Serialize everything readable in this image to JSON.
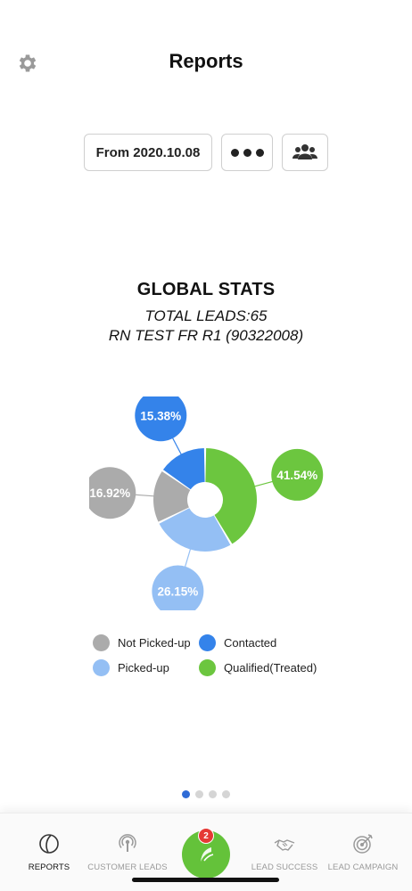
{
  "header": {
    "title": "Reports",
    "settings_icon": "gear-icon"
  },
  "controls": {
    "date_filter_label": "From 2020.10.08",
    "more_icon": "ellipsis-icon",
    "team_icon": "users-icon"
  },
  "stats": {
    "title": "GLOBAL STATS",
    "total_leads": "TOTAL LEADS:65",
    "campaign": "RN TEST FR R1 (90322008)"
  },
  "chart_data": {
    "type": "pie",
    "title": "",
    "series": [
      {
        "name": "Qualified(Treated)",
        "value": 41.54,
        "label": "41.54%",
        "color": "#6cc63f"
      },
      {
        "name": "Picked-up",
        "value": 26.15,
        "label": "26.15%",
        "color": "#94bff4"
      },
      {
        "name": "Not Picked-up",
        "value": 16.92,
        "label": "16.92%",
        "color": "#ababab"
      },
      {
        "name": "Contacted",
        "value": 15.38,
        "label": "15.38%",
        "color": "#3483ea"
      }
    ]
  },
  "legend": {
    "items": [
      {
        "label": "Not Picked-up",
        "color": "#ababab"
      },
      {
        "label": "Contacted",
        "color": "#3483ea"
      },
      {
        "label": "Picked-up",
        "color": "#94bff4"
      },
      {
        "label": "Qualified(Treated)",
        "color": "#6cc63f"
      }
    ]
  },
  "pager": {
    "pages": 4,
    "active": 1
  },
  "tabbar": {
    "tabs": [
      {
        "label": "REPORTS",
        "icon": "reports-icon",
        "active": true
      },
      {
        "label": "CUSTOMER LEADS",
        "icon": "broadcast-icon",
        "active": false
      },
      {
        "label": "LEAD SUCCESS",
        "icon": "handshake-icon",
        "active": false
      },
      {
        "label": "LEAD CAMPAIGN",
        "icon": "target-icon",
        "active": false
      }
    ],
    "center_icon": "app-logo-icon",
    "center_badge": "2"
  },
  "colors": {
    "accent_green": "#64c23a",
    "accent_blue": "#2f6bd6",
    "badge_red": "#e53935"
  }
}
